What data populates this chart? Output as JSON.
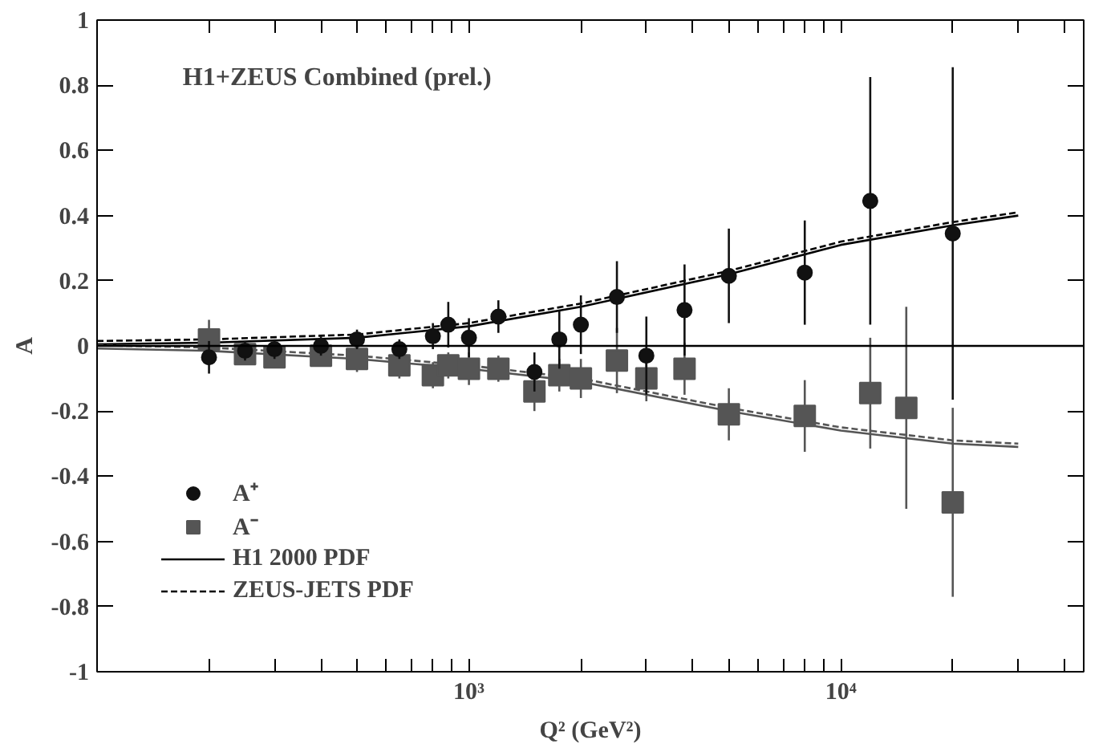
{
  "chart_data": {
    "type": "scatter",
    "xlabel": "Q² (GeV²)",
    "ylabel": "A",
    "annotations": [
      "H1+ZEUS Combined (prel.)"
    ],
    "log": "x",
    "grid": false,
    "legend": "bottom left",
    "xlim": [
      100,
      45000
    ],
    "ylim": [
      -1,
      1
    ],
    "xticks": [
      {
        "value": 200,
        "label": null
      },
      {
        "value": 300,
        "label": null
      },
      {
        "value": 400,
        "label": null
      },
      {
        "value": 500,
        "label": null
      },
      {
        "value": 600,
        "label": null
      },
      {
        "value": 700,
        "label": null
      },
      {
        "value": 800,
        "label": null
      },
      {
        "value": 900,
        "label": null
      },
      {
        "value": 1000,
        "label": "10³"
      },
      {
        "value": 2000,
        "label": null
      },
      {
        "value": 3000,
        "label": null
      },
      {
        "value": 4000,
        "label": null
      },
      {
        "value": 5000,
        "label": null
      },
      {
        "value": 6000,
        "label": null
      },
      {
        "value": 7000,
        "label": null
      },
      {
        "value": 8000,
        "label": null
      },
      {
        "value": 9000,
        "label": null
      },
      {
        "value": 10000,
        "label": "10⁴"
      },
      {
        "value": 20000,
        "label": null
      },
      {
        "value": 30000,
        "label": null
      },
      {
        "value": 40000,
        "label": null
      }
    ],
    "yticks": [
      -1,
      -0.8,
      -0.6,
      -0.4,
      -0.2,
      0,
      0.2,
      0.4,
      0.6,
      0.8,
      1
    ],
    "ref_lines": [
      {
        "axis": "y",
        "value": 0,
        "label": null,
        "color": "#000000"
      }
    ],
    "series": [
      {
        "name": "A⁺",
        "marker": "circle",
        "color": "#111111",
        "x": [
          200,
          250,
          300,
          400,
          500,
          650,
          800,
          880,
          1000,
          1200,
          1500,
          1750,
          2000,
          2500,
          3000,
          3800,
          5000,
          8000,
          12000,
          20000
        ],
        "values": [
          -0.035,
          -0.015,
          -0.01,
          0.0,
          0.02,
          -0.01,
          0.03,
          0.065,
          0.025,
          0.09,
          -0.08,
          0.02,
          0.065,
          0.15,
          -0.03,
          0.11,
          0.215,
          0.225,
          0.445,
          0.345
        ],
        "errors": [
          0.05,
          0.03,
          0.03,
          0.03,
          0.03,
          0.03,
          0.04,
          0.07,
          0.06,
          0.05,
          0.06,
          0.09,
          0.09,
          0.11,
          0.12,
          0.14,
          0.145,
          0.16,
          0.38,
          0.51
        ]
      },
      {
        "name": "A⁻",
        "marker": "square",
        "color": "#555555",
        "x": [
          200,
          250,
          300,
          400,
          500,
          650,
          800,
          880,
          1000,
          1200,
          1500,
          1750,
          2000,
          2500,
          3000,
          3800,
          5000,
          8000,
          12000,
          15000,
          20000
        ],
        "values": [
          0.02,
          -0.025,
          -0.035,
          -0.03,
          -0.04,
          -0.06,
          -0.09,
          -0.06,
          -0.07,
          -0.07,
          -0.14,
          -0.09,
          -0.1,
          -0.045,
          -0.1,
          -0.07,
          -0.21,
          -0.215,
          -0.145,
          -0.19,
          -0.48
        ],
        "errors": [
          0.06,
          0.03,
          0.03,
          0.03,
          0.04,
          0.04,
          0.04,
          0.04,
          0.05,
          0.04,
          0.06,
          0.05,
          0.06,
          0.1,
          0.07,
          0.08,
          0.08,
          0.11,
          0.17,
          0.31,
          0.29
        ]
      },
      {
        "name": "H1 2000 PDF",
        "type": "line",
        "line_style": "solid",
        "color": "#000000",
        "x": [
          100,
          200,
          500,
          1000,
          2000,
          5000,
          10000,
          20000,
          30000
        ],
        "values": [
          0.005,
          0.01,
          0.025,
          0.06,
          0.12,
          0.22,
          0.31,
          0.37,
          0.4
        ]
      },
      {
        "name": "ZEUS-JETS PDF",
        "type": "line",
        "line_style": "dashed",
        "color": "#000000",
        "x": [
          100,
          200,
          500,
          1000,
          2000,
          5000,
          10000,
          20000,
          30000
        ],
        "values": [
          0.015,
          0.02,
          0.035,
          0.07,
          0.13,
          0.23,
          0.32,
          0.38,
          0.41
        ]
      },
      {
        "type": "line",
        "line_style": "solid",
        "color": "#555555",
        "x": [
          100,
          200,
          500,
          1000,
          2000,
          5000,
          10000,
          20000,
          30000
        ],
        "values": [
          -0.008,
          -0.015,
          -0.04,
          -0.07,
          -0.11,
          -0.2,
          -0.26,
          -0.3,
          -0.31
        ]
      },
      {
        "type": "line",
        "line_style": "dashed",
        "color": "#555555",
        "x": [
          100,
          200,
          500,
          1000,
          2000,
          5000,
          10000,
          20000,
          30000
        ],
        "values": [
          0.002,
          -0.005,
          -0.03,
          -0.06,
          -0.1,
          -0.19,
          -0.25,
          -0.29,
          -0.3
        ]
      }
    ]
  }
}
